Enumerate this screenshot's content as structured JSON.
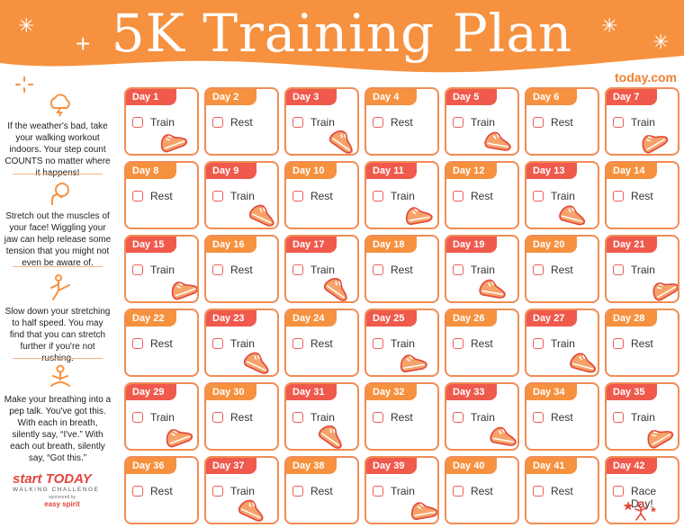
{
  "header": {
    "title": "5K Training Plan",
    "site": "today.com"
  },
  "colors": {
    "orange": "#f6913f",
    "coral": "#ef5a4c",
    "border": "#f08c55"
  },
  "tips": [
    {
      "icon": "storm-cloud-icon",
      "text": "If the weather's bad, take your walking workout indoors. Your step count COUNTS no matter where it happens!"
    },
    {
      "icon": "face-touch-icon",
      "text": "Stretch out the muscles of your face! Wiggling your jaw can help release some tension that you might not even be aware of."
    },
    {
      "icon": "kick-stretch-icon",
      "text": "Slow down your stretching to half speed. You may find that you can stretch further if you're not rushing."
    },
    {
      "icon": "meditation-icon",
      "text": "Make your breathing into a pep talk. You've got this. With each in breath, silently say, “I've.” With each out breath, silently say, “Got this.”"
    }
  ],
  "logo": {
    "brand": "start TODAY",
    "tagline": "WALKING CHALLENGE",
    "sponsor_prefix": "sponsored by",
    "sponsor": "easy spirit"
  },
  "days": [
    {
      "label": "Day 1",
      "activity": "Train"
    },
    {
      "label": "Day 2",
      "activity": "Rest"
    },
    {
      "label": "Day 3",
      "activity": "Train"
    },
    {
      "label": "Day 4",
      "activity": "Rest"
    },
    {
      "label": "Day 5",
      "activity": "Train"
    },
    {
      "label": "Day 6",
      "activity": "Rest"
    },
    {
      "label": "Day 7",
      "activity": "Train"
    },
    {
      "label": "Day 8",
      "activity": "Rest"
    },
    {
      "label": "Day 9",
      "activity": "Train"
    },
    {
      "label": "Day 10",
      "activity": "Rest"
    },
    {
      "label": "Day 11",
      "activity": "Train"
    },
    {
      "label": "Day 12",
      "activity": "Rest"
    },
    {
      "label": "Day 13",
      "activity": "Train"
    },
    {
      "label": "Day 14",
      "activity": "Rest"
    },
    {
      "label": "Day 15",
      "activity": "Train"
    },
    {
      "label": "Day 16",
      "activity": "Rest"
    },
    {
      "label": "Day 17",
      "activity": "Train"
    },
    {
      "label": "Day 18",
      "activity": "Rest"
    },
    {
      "label": "Day 19",
      "activity": "Train"
    },
    {
      "label": "Day 20",
      "activity": "Rest"
    },
    {
      "label": "Day 21",
      "activity": "Train"
    },
    {
      "label": "Day 22",
      "activity": "Rest"
    },
    {
      "label": "Day 23",
      "activity": "Train"
    },
    {
      "label": "Day 24",
      "activity": "Rest"
    },
    {
      "label": "Day 25",
      "activity": "Train"
    },
    {
      "label": "Day 26",
      "activity": "Rest"
    },
    {
      "label": "Day 27",
      "activity": "Train"
    },
    {
      "label": "Day 28",
      "activity": "Rest"
    },
    {
      "label": "Day 29",
      "activity": "Train"
    },
    {
      "label": "Day 30",
      "activity": "Rest"
    },
    {
      "label": "Day 31",
      "activity": "Train"
    },
    {
      "label": "Day 32",
      "activity": "Rest"
    },
    {
      "label": "Day 33",
      "activity": "Train"
    },
    {
      "label": "Day 34",
      "activity": "Rest"
    },
    {
      "label": "Day 35",
      "activity": "Train"
    },
    {
      "label": "Day 36",
      "activity": "Rest"
    },
    {
      "label": "Day 37",
      "activity": "Train"
    },
    {
      "label": "Day 38",
      "activity": "Rest"
    },
    {
      "label": "Day 39",
      "activity": "Train"
    },
    {
      "label": "Day 40",
      "activity": "Rest"
    },
    {
      "label": "Day 41",
      "activity": "Rest"
    },
    {
      "label": "Day 42",
      "activity": "Race Day!"
    }
  ]
}
